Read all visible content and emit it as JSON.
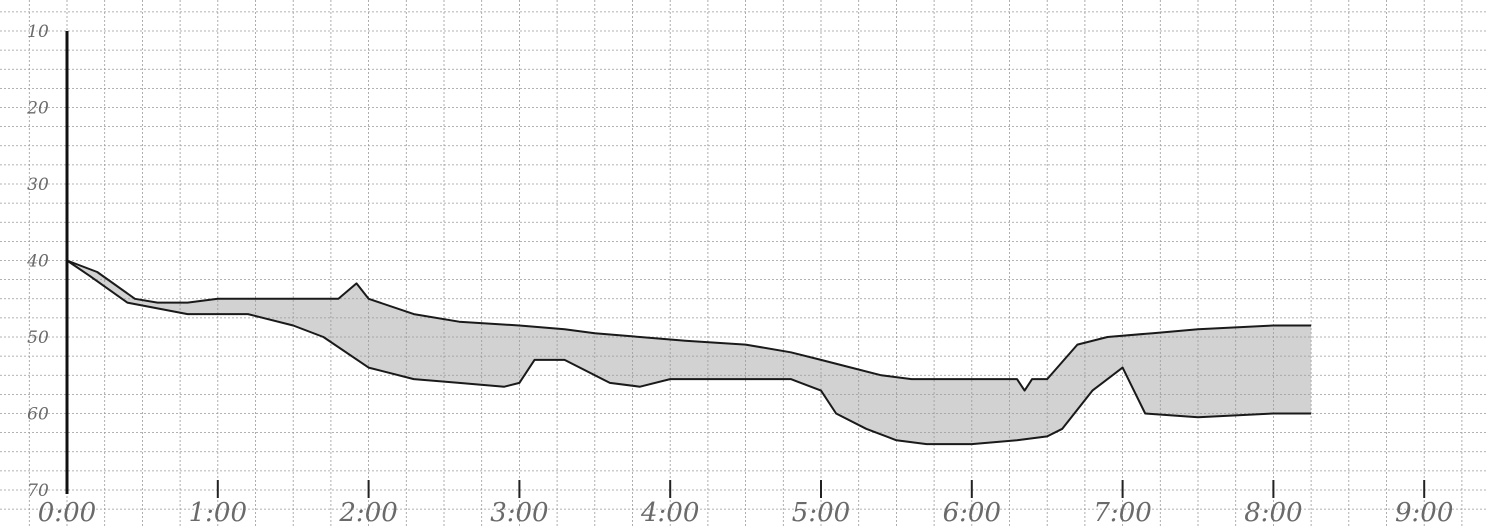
{
  "chart_data": {
    "type": "area",
    "x_ticks": [
      "0:00",
      "1:00",
      "2:00",
      "3:00",
      "4:00",
      "5:00",
      "6:00",
      "7:00",
      "8:00",
      "9:00"
    ],
    "y_ticks": [
      "10",
      "20",
      "30",
      "40",
      "50",
      "60",
      "70"
    ],
    "xlim": [
      0,
      9.2
    ],
    "ylim": [
      10,
      70
    ],
    "y_inverted": true,
    "grid": true,
    "series": [
      {
        "role": "upper",
        "x": [
          0,
          0.2,
          0.45,
          0.6,
          0.8,
          1.0,
          1.3,
          1.8,
          1.92,
          2.0,
          2.3,
          2.6,
          3.0,
          3.3,
          3.5,
          3.8,
          4.1,
          4.5,
          4.8,
          5.0,
          5.2,
          5.4,
          5.6,
          6.0,
          6.2,
          6.3,
          6.35,
          6.4,
          6.5,
          6.7,
          6.9,
          7.2,
          7.5,
          8.0,
          8.25
        ],
        "y": [
          40,
          41.5,
          45,
          45.5,
          45.5,
          45,
          45,
          45,
          43,
          45,
          47,
          48,
          48.5,
          49,
          49.5,
          50,
          50.5,
          51,
          52,
          53,
          54,
          55,
          55.5,
          55.5,
          55.5,
          55.5,
          57,
          55.5,
          55.5,
          51,
          50,
          49.5,
          49,
          48.5,
          48.5
        ]
      },
      {
        "role": "lower",
        "x": [
          0,
          0.15,
          0.4,
          0.8,
          1.2,
          1.5,
          1.7,
          2.0,
          2.3,
          2.6,
          2.9,
          3.0,
          3.1,
          3.3,
          3.6,
          3.8,
          4.0,
          4.5,
          4.8,
          5.0,
          5.1,
          5.3,
          5.5,
          5.7,
          6.0,
          6.3,
          6.5,
          6.6,
          6.8,
          7.0,
          7.15,
          7.5,
          8.0,
          8.25
        ],
        "y": [
          40,
          42,
          45.5,
          47,
          47,
          48.5,
          50,
          54,
          55.5,
          56,
          56.5,
          56,
          53,
          53,
          56,
          56.5,
          55.5,
          55.5,
          55.5,
          57,
          60,
          62,
          63.5,
          64,
          64,
          63.5,
          63,
          62,
          57,
          54,
          60,
          60.5,
          60,
          60
        ]
      }
    ]
  }
}
